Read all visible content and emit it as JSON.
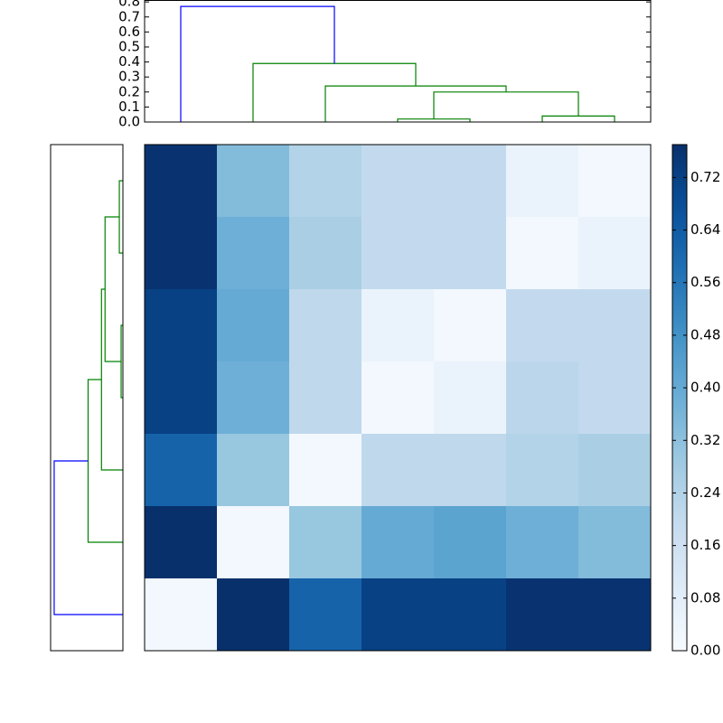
{
  "chart_data": [
    {
      "type": "dendrogram",
      "orientation": "top",
      "xlim": [
        0,
        70
      ],
      "ylim": [
        0,
        0.81
      ],
      "yticks": [
        {
          "value": 0,
          "label": "0.0"
        },
        0.1,
        0.2,
        0.3,
        0.4,
        0.5,
        0.6,
        0.7,
        0.8
      ],
      "links": [
        {
          "x": [
            35,
            35,
            45,
            45
          ],
          "y": [
            0,
            0.02,
            0.02,
            0
          ],
          "color": "#008000"
        },
        {
          "x": [
            55,
            55,
            65,
            65
          ],
          "y": [
            0,
            0.04,
            0.04,
            0
          ],
          "color": "#008000"
        },
        {
          "x": [
            40,
            40,
            60,
            60
          ],
          "y": [
            0.02,
            0.2,
            0.2,
            0.04
          ],
          "color": "#008000"
        },
        {
          "x": [
            25,
            25,
            50,
            50
          ],
          "y": [
            0,
            0.24,
            0.24,
            0.2
          ],
          "color": "#008000"
        },
        {
          "x": [
            15,
            15,
            37.5,
            37.5
          ],
          "y": [
            0,
            0.39,
            0.39,
            0.24
          ],
          "color": "#008000"
        },
        {
          "x": [
            5,
            5,
            26.25,
            26.25
          ],
          "y": [
            0,
            0.77,
            0.77,
            0.39
          ],
          "color": "#0000ff"
        }
      ]
    },
    {
      "type": "dendrogram",
      "orientation": "left",
      "xlim": [
        0.81,
        0
      ],
      "ylim": [
        0,
        70
      ],
      "links": [
        {
          "x": [
            0,
            0.02,
            0.02,
            0
          ],
          "y": [
            35,
            35,
            45,
            45
          ],
          "color": "#008000"
        },
        {
          "x": [
            0,
            0.04,
            0.04,
            0
          ],
          "y": [
            55,
            55,
            65,
            65
          ],
          "color": "#008000"
        },
        {
          "x": [
            0.02,
            0.2,
            0.2,
            0.04
          ],
          "y": [
            40,
            40,
            60,
            60
          ],
          "color": "#008000"
        },
        {
          "x": [
            0,
            0.24,
            0.24,
            0.2
          ],
          "y": [
            25,
            25,
            50,
            50
          ],
          "color": "#008000"
        },
        {
          "x": [
            0,
            0.39,
            0.39,
            0.24
          ],
          "y": [
            15,
            15,
            37.5,
            37.5
          ],
          "color": "#008000"
        },
        {
          "x": [
            0,
            0.77,
            0.77,
            0.39
          ],
          "y": [
            5,
            5,
            26.25,
            26.25
          ],
          "color": "#0000ff"
        }
      ]
    },
    {
      "type": "heatmap",
      "colormap": "Blues",
      "clim": [
        0,
        0.77
      ],
      "cticks": [
        {
          "value": 0,
          "label": "0.00"
        },
        0.08,
        0.16,
        0.24,
        0.32,
        {
          "value": 0.4,
          "label": "0.40"
        },
        0.48,
        0.56,
        0.64,
        0.72
      ],
      "values": [
        [
          0.76,
          0.34,
          0.24,
          0.2,
          0.2,
          0.05,
          0.02
        ],
        [
          0.76,
          0.38,
          0.26,
          0.2,
          0.2,
          0.02,
          0.05
        ],
        [
          0.72,
          0.4,
          0.21,
          0.05,
          0.02,
          0.2,
          0.2
        ],
        [
          0.72,
          0.38,
          0.21,
          0.02,
          0.05,
          0.22,
          0.2
        ],
        [
          0.62,
          0.3,
          0.02,
          0.21,
          0.21,
          0.24,
          0.26
        ],
        [
          0.77,
          0.02,
          0.3,
          0.4,
          0.42,
          0.38,
          0.34
        ],
        [
          0.02,
          0.77,
          0.62,
          0.72,
          0.72,
          0.76,
          0.76
        ]
      ]
    }
  ]
}
